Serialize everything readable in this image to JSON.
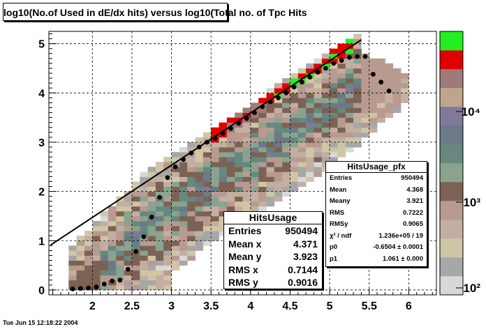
{
  "page": {
    "title": "log10(No.of Used in dE/dx hits) versus log10(Total no. of Tpc Hits",
    "timestamp": "Tue Jun 15 12:18:22 2004"
  },
  "colors": {
    "palette": [
      "#d8d8d8",
      "#a7a7a7",
      "#cfc6a6",
      "#c4aea2",
      "#b89a90",
      "#7c6254",
      "#8aa38f",
      "#66887f",
      "#6b7a86",
      "#807a9a",
      "#bfa58c",
      "#9f7a7a",
      "#e00000",
      "#22ee22"
    ],
    "profile": "#000000"
  },
  "chart_data": {
    "type": "heatmap",
    "title": "log10(No.of Used in dE/dx hits) versus log10(Total no. of Tpc Hits",
    "xlim": [
      1.45,
      6.35
    ],
    "ylim": [
      -0.1,
      5.25
    ],
    "x_ticks": [
      "2",
      "2.5",
      "3",
      "3.5",
      "4",
      "4.5",
      "5",
      "5.5",
      "6"
    ],
    "y_ticks": [
      "0",
      "1",
      "2",
      "3",
      "4",
      "5"
    ],
    "grid": true,
    "z_scale": "log",
    "z_ticks": [
      "10²",
      "10³",
      "10⁴"
    ],
    "fit_line": {
      "p0": -0.6504,
      "p1": 1.061,
      "x_range": [
        1.47,
        5.4
      ]
    },
    "profile": {
      "x": [
        1.75,
        1.85,
        1.95,
        2.05,
        2.15,
        2.25,
        2.35,
        2.45,
        2.55,
        2.65,
        2.75,
        2.85,
        2.95,
        3.05,
        3.15,
        3.25,
        3.35,
        3.45,
        3.55,
        3.65,
        3.75,
        3.85,
        3.95,
        4.05,
        4.15,
        4.25,
        4.35,
        4.45,
        4.55,
        4.65,
        4.75,
        4.85,
        4.95,
        5.05,
        5.15,
        5.25,
        5.35,
        5.45,
        5.55,
        5.65,
        5.75
      ],
      "y": [
        0.02,
        0.03,
        0.04,
        0.06,
        0.12,
        0.18,
        0.2,
        0.42,
        0.78,
        1.08,
        1.48,
        1.88,
        2.28,
        2.5,
        2.65,
        2.78,
        2.9,
        3.0,
        3.08,
        3.18,
        3.28,
        3.38,
        3.48,
        3.6,
        3.72,
        3.82,
        3.9,
        4.0,
        4.12,
        4.22,
        4.32,
        4.42,
        4.5,
        4.6,
        4.66,
        4.72,
        4.74,
        4.74,
        4.38,
        4.22,
        4.04
      ]
    },
    "stats_main": {
      "title": "HitsUsage",
      "rows": [
        {
          "label": "Entries",
          "value": "950494"
        },
        {
          "label": "Mean x",
          "value": "4.371"
        },
        {
          "label": "Mean y",
          "value": "3.923"
        },
        {
          "label": "RMS x",
          "value": "0.7144"
        },
        {
          "label": "RMS y",
          "value": "0.9016"
        }
      ]
    },
    "stats_profile": {
      "title": "HitsUsage_pfx",
      "rows": [
        {
          "label": "Entries",
          "value": "950494"
        },
        {
          "label": "Mean",
          "value": "4.368"
        },
        {
          "label": "Meany",
          "value": "3.921"
        },
        {
          "label": "RMS",
          "value": "0.7222"
        },
        {
          "label": "RMSy",
          "value": "0.9065"
        },
        {
          "label": "χ² / ndf",
          "value": "1.236e+05 / 19"
        },
        {
          "label": "p0",
          "value": "-0.6504 ± 0.0001"
        },
        {
          "label": "p1",
          "value": "1.061 ± 0.000"
        }
      ]
    }
  }
}
